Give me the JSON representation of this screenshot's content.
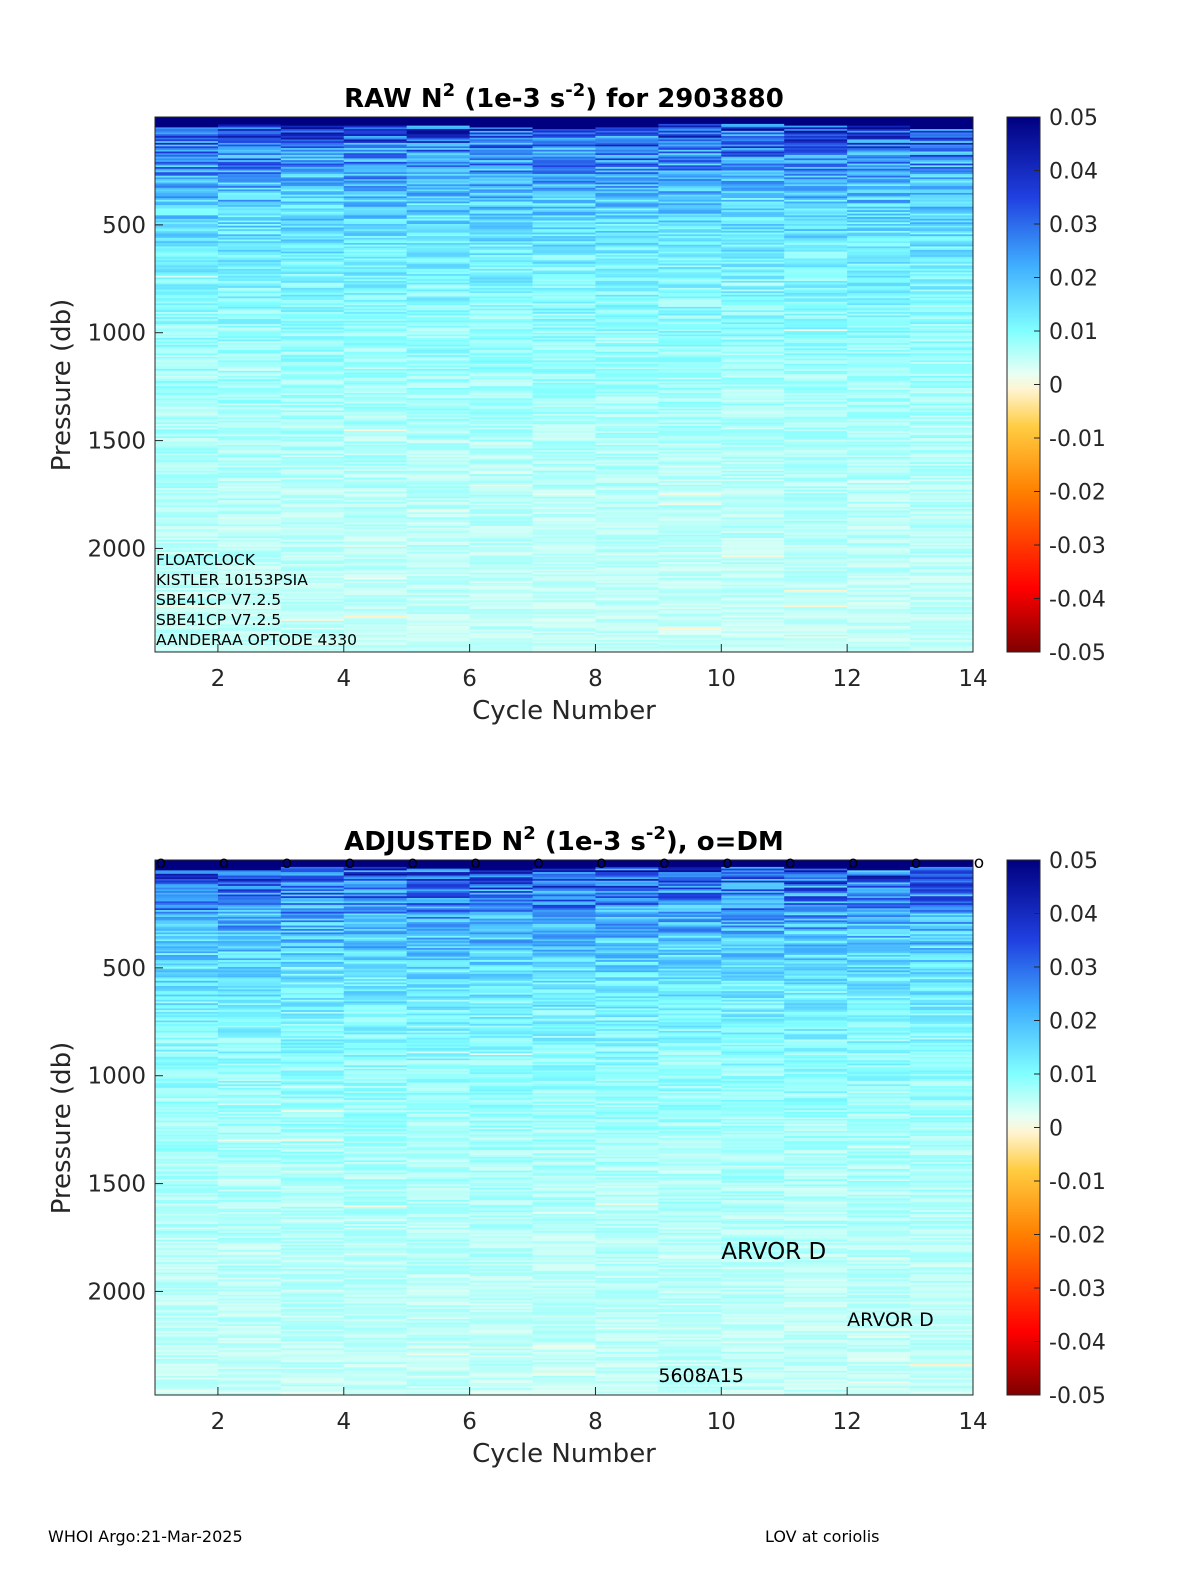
{
  "chart_data": [
    {
      "type": "heatmap",
      "title": "RAW N2 (1e-3 s-2) for 2903880",
      "title_parts": {
        "lead": "RAW N",
        "sup1": "2",
        "mid": " (1e-3 s",
        "sup2": "-2",
        "tail": ") for 2903880"
      },
      "xlabel": "Cycle Number",
      "ylabel": "Pressure (db)",
      "xlim": [
        1,
        14
      ],
      "ylim": [
        2480,
        0
      ],
      "xticks": [
        2,
        4,
        6,
        8,
        10,
        12,
        14
      ],
      "yticks": [
        500,
        1000,
        1500,
        2000
      ],
      "cycles": [
        1,
        2,
        3,
        4,
        5,
        6,
        7,
        8,
        9,
        10,
        11,
        12,
        13
      ],
      "colorbar": {
        "min": -0.05,
        "max": 0.05,
        "ticks": [
          "0.05",
          "0.04",
          "0.03",
          "0.02",
          "0.01",
          "0",
          "-0.01",
          "-0.02",
          "-0.03",
          "-0.04",
          "-0.05"
        ],
        "colormap": "jet-like diverging"
      },
      "annotations": [
        "FLOATCLOCK",
        "KISTLER 10153PSIA",
        "SBE41CP V7.2.5",
        "SBE41CP V7.2.5",
        "AANDERAA OPTODE 4330"
      ]
    },
    {
      "type": "heatmap",
      "title": "ADJUSTED N2 (1e-3 s-2), o=DM",
      "title_parts": {
        "lead": "ADJUSTED N",
        "sup1": "2",
        "mid": " (1e-3 s",
        "sup2": "-2",
        "tail": "), o=DM"
      },
      "xlabel": "Cycle Number",
      "ylabel": "Pressure (db)",
      "xlim": [
        1,
        14
      ],
      "ylim": [
        2480,
        0
      ],
      "xticks": [
        2,
        4,
        6,
        8,
        10,
        12,
        14
      ],
      "yticks": [
        500,
        1000,
        1500,
        2000
      ],
      "cycles": [
        1,
        2,
        3,
        4,
        5,
        6,
        7,
        8,
        9,
        10,
        11,
        12,
        13
      ],
      "dm_markers": [
        1,
        2,
        3,
        4,
        5,
        6,
        7,
        8,
        9,
        10,
        11,
        12,
        13,
        14
      ],
      "dm_marker_label": "o",
      "colorbar": {
        "min": -0.05,
        "max": 0.05,
        "ticks": [
          "0.05",
          "0.04",
          "0.03",
          "0.02",
          "0.01",
          "0",
          "-0.01",
          "-0.02",
          "-0.03",
          "-0.04",
          "-0.05"
        ],
        "colormap": "jet-like diverging"
      },
      "annotations": [
        {
          "text": "ARVOR D",
          "x": 10,
          "y": 1850,
          "size": "large"
        },
        {
          "text": "ARVOR D",
          "x": 12,
          "y": 2160,
          "size": "medium"
        },
        {
          "text": "5608A15",
          "x": 9,
          "y": 2420,
          "size": "medium"
        }
      ]
    }
  ],
  "footer": {
    "left": "WHOI Argo:21-Mar-2025",
    "right": "LOV at coriolis"
  }
}
